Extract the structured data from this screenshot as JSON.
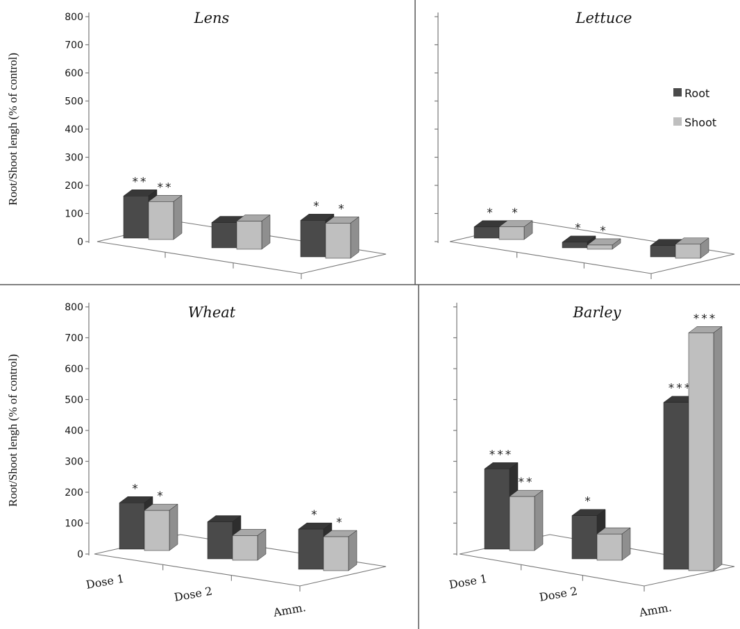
{
  "colors": {
    "root": {
      "front": "#4a4a4a",
      "side": "#2e2e2e",
      "top": "#383838"
    },
    "shoot": {
      "front": "#bfbfbf",
      "side": "#8f8f8f",
      "top": "#a8a8a8"
    },
    "axis": "#777777",
    "divider": "#555555"
  },
  "legend": {
    "root": "Root",
    "shoot": "Shoot"
  },
  "y_axis_label": "Root/Shoot lengh (% of control)",
  "chart_data": [
    {
      "type": "bar",
      "title": "Lens",
      "categories": [
        "Dose 1",
        "Dose 2",
        "Amm."
      ],
      "series": [
        {
          "name": "Root",
          "values": [
            150,
            90,
            130
          ]
        },
        {
          "name": "Shoot",
          "values": [
            135,
            100,
            125
          ]
        }
      ],
      "significance": {
        "Root": [
          "**",
          "",
          "*"
        ],
        "Shoot": [
          "**",
          "",
          "*"
        ]
      },
      "ylabel": "Root/Shoot lengh (% of control)",
      "ylim": [
        0,
        800
      ],
      "yticks": [
        "0",
        "100",
        "200",
        "300",
        "400",
        "500",
        "600",
        "700",
        "800"
      ]
    },
    {
      "type": "bar",
      "title": "Lettuce",
      "categories": [
        "Dose 1",
        "Dose 2",
        "Amm."
      ],
      "series": [
        {
          "name": "Root",
          "values": [
            40,
            20,
            40
          ]
        },
        {
          "name": "Shoot",
          "values": [
            45,
            15,
            50
          ]
        }
      ],
      "significance": {
        "Root": [
          "*",
          "*",
          ""
        ],
        "Shoot": [
          "*",
          "*",
          ""
        ]
      },
      "ylim": [
        0,
        800
      ],
      "yticks": []
    },
    {
      "type": "bar",
      "title": "Wheat",
      "categories": [
        "Dose 1",
        "Dose 2",
        "Amm."
      ],
      "series": [
        {
          "name": "Root",
          "values": [
            150,
            120,
            130
          ]
        },
        {
          "name": "Shoot",
          "values": [
            130,
            80,
            110
          ]
        }
      ],
      "significance": {
        "Root": [
          "*",
          "",
          "*"
        ],
        "Shoot": [
          "*",
          "",
          "*"
        ]
      },
      "ylabel": "Root/Shoot lengh (% of control)",
      "ylim": [
        0,
        800
      ],
      "yticks": [
        "0",
        "100",
        "200",
        "300",
        "400",
        "500",
        "600",
        "700",
        "800"
      ]
    },
    {
      "type": "bar",
      "title": "Barley",
      "categories": [
        "Dose 1",
        "Dose 2",
        "Amm."
      ],
      "series": [
        {
          "name": "Root",
          "values": [
            260,
            140,
            540
          ]
        },
        {
          "name": "Shoot",
          "values": [
            175,
            85,
            770
          ]
        }
      ],
      "significance": {
        "Root": [
          "***",
          "*",
          "***"
        ],
        "Shoot": [
          "**",
          "",
          "***"
        ]
      },
      "ylim": [
        0,
        800
      ],
      "yticks": []
    }
  ]
}
